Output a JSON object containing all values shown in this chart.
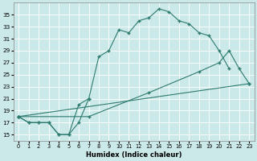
{
  "xlabel": "Humidex (Indice chaleur)",
  "background_color": "#cce9e9",
  "grid_color": "#ffffff",
  "line_color": "#2d7a6e",
  "xlim": [
    -0.5,
    23.5
  ],
  "ylim": [
    14,
    37
  ],
  "xticks": [
    0,
    1,
    2,
    3,
    4,
    5,
    6,
    7,
    8,
    9,
    10,
    11,
    12,
    13,
    14,
    15,
    16,
    17,
    18,
    19,
    20,
    21,
    22,
    23
  ],
  "yticks": [
    15,
    17,
    19,
    21,
    23,
    25,
    27,
    29,
    31,
    33,
    35
  ],
  "series": [
    {
      "x": [
        0,
        1,
        2,
        3,
        4,
        5,
        6,
        7,
        8,
        9,
        10,
        11,
        12,
        13,
        14,
        15,
        16,
        17,
        18,
        19,
        20,
        21
      ],
      "y": [
        18.0,
        17.0,
        17.0,
        17.0,
        15.0,
        15.0,
        17.0,
        21.0,
        28.0,
        29.0,
        32.5,
        32.0,
        34.0,
        34.5,
        36.0,
        35.5,
        34.0,
        33.5,
        32.0,
        31.5,
        29.0,
        26.0
      ]
    },
    {
      "x": [
        0,
        1,
        2,
        3,
        4,
        5,
        6,
        7
      ],
      "y": [
        18.0,
        17.0,
        17.0,
        17.0,
        15.0,
        15.0,
        20.0,
        21.0
      ]
    },
    {
      "x": [
        0,
        7,
        13,
        18,
        20,
        21,
        22,
        23
      ],
      "y": [
        18.0,
        18.0,
        22.0,
        25.5,
        27.0,
        29.0,
        26.0,
        23.5
      ]
    },
    {
      "x": [
        0,
        23
      ],
      "y": [
        18.0,
        23.5
      ]
    }
  ]
}
